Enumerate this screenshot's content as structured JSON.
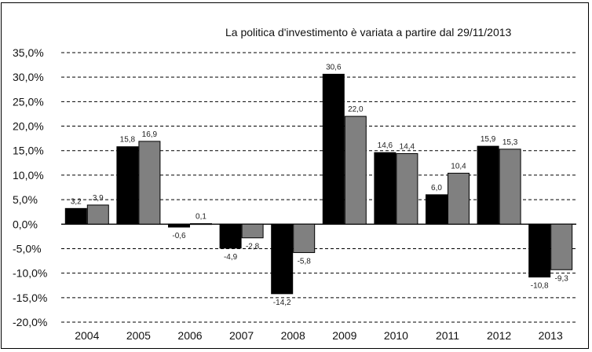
{
  "chart_data": {
    "type": "bar",
    "annotation": "La politica d'investimento è variata a partire dal 29/11/2013",
    "categories": [
      "2004",
      "2005",
      "2006",
      "2007",
      "2008",
      "2009",
      "2010",
      "2011",
      "2012",
      "2013"
    ],
    "series": [
      {
        "values": [
          3.2,
          15.8,
          -0.6,
          -4.9,
          -14.2,
          30.6,
          14.6,
          6.0,
          15.9,
          -10.8
        ],
        "labels": [
          "3,2",
          "15,8",
          "-0,6",
          "-4,9",
          "-14,2",
          "30,6",
          "14,6",
          "6,0",
          "15,9",
          "-10,8"
        ],
        "color": "#000000"
      },
      {
        "values": [
          3.9,
          16.9,
          0.1,
          -2.8,
          -5.8,
          22.0,
          14.4,
          10.4,
          15.3,
          -9.3
        ],
        "labels": [
          "3,9",
          "16,9",
          "0,1",
          "-2,8",
          "-5,8",
          "22,0",
          "14,4",
          "10,4",
          "15,3",
          "-9,3"
        ],
        "color": "#808080"
      }
    ],
    "y_ticks": [
      35,
      30,
      25,
      20,
      15,
      10,
      5,
      0,
      -5,
      -10,
      -15,
      -20
    ],
    "y_tick_labels": [
      "35,0%",
      "30,0%",
      "25,0%",
      "20,0%",
      "15,0%",
      "10,0%",
      "5,0%",
      "0,0%",
      "-5,0%",
      "-10,0%",
      "-15,0%",
      "-20,0%"
    ],
    "ylim": [
      -20,
      35
    ],
    "grid": "dashed horizontal",
    "legend": "none"
  }
}
